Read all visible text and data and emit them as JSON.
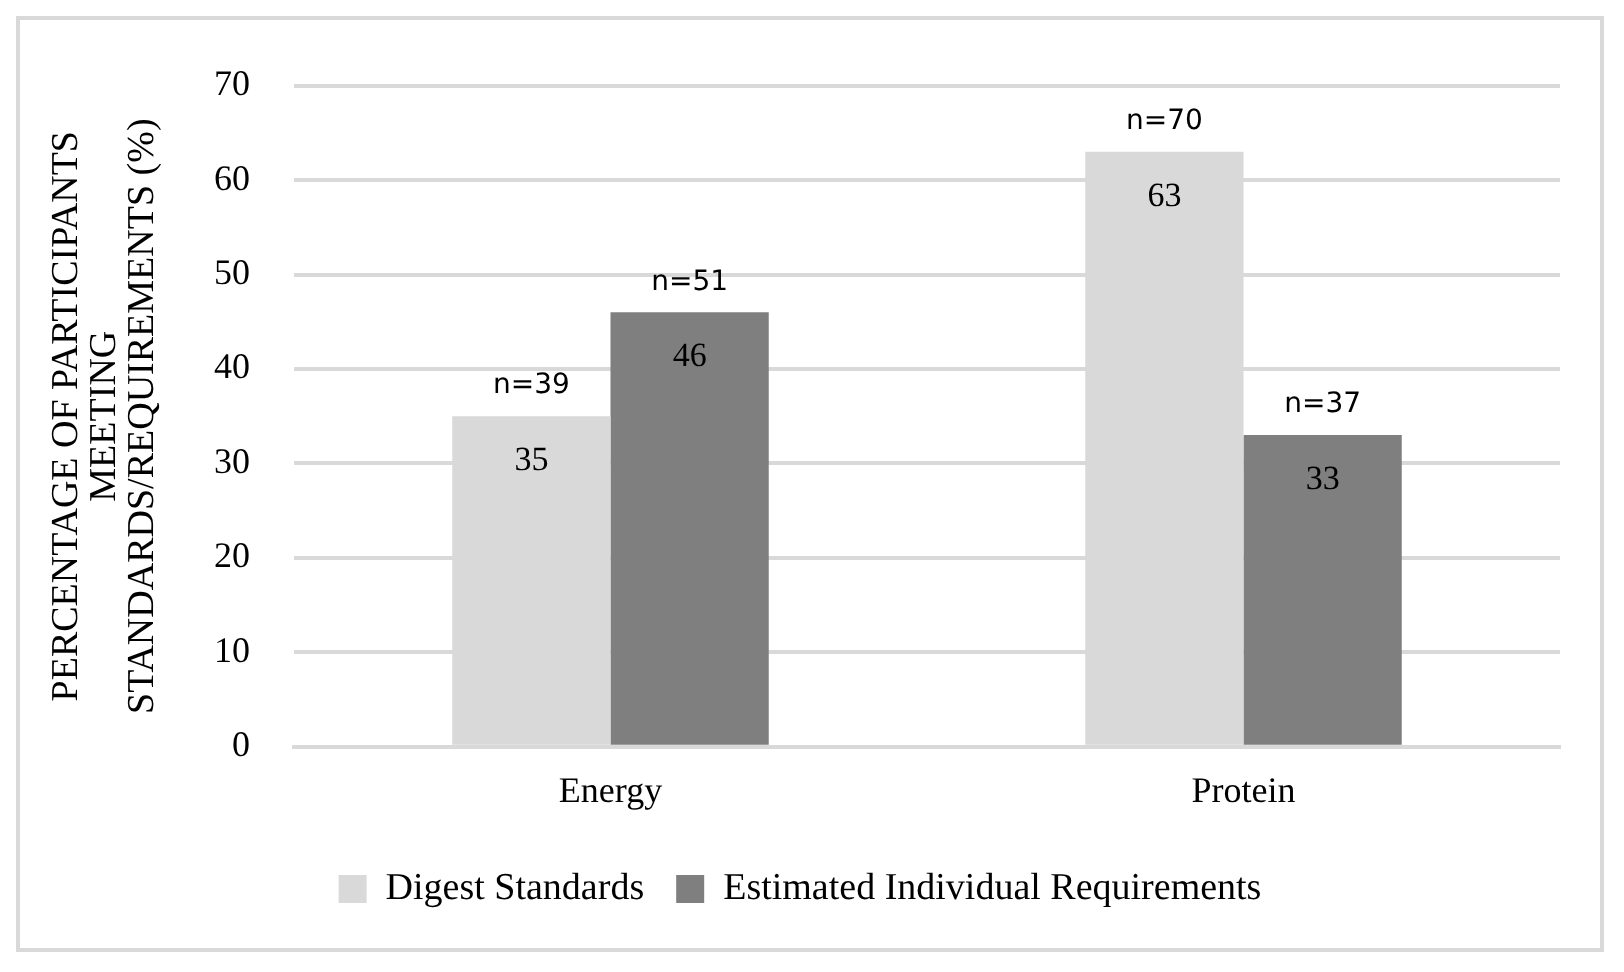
{
  "chart_data": {
    "type": "bar",
    "ylabel": "PERCENTAGE OF PARTICIPANTS MEETING STANDARDS/REQUIREMENTS (%)",
    "categories": [
      "Energy",
      "Protein"
    ],
    "series": [
      {
        "name": "Digest Standards",
        "color": "#d9d9d9",
        "values": [
          35,
          63
        ]
      },
      {
        "name": "Estimated Individual Requirements",
        "color": "#7f7f7f",
        "values": [
          46,
          33
        ]
      }
    ],
    "ylim": [
      0,
      70
    ],
    "yticks": [
      0,
      10,
      20,
      30,
      40,
      50,
      60,
      70
    ],
    "grid": "y",
    "legend": "bottom",
    "data_labels": true,
    "annotations": [
      {
        "text": "n=39",
        "x": "Energy",
        "y": 35
      },
      {
        "text": "n=51",
        "x": "Energy",
        "y": 46
      },
      {
        "text": "n=70",
        "x": "Protein",
        "y": 63
      },
      {
        "text": "n=37",
        "x": "Protein",
        "y": 33
      }
    ]
  }
}
